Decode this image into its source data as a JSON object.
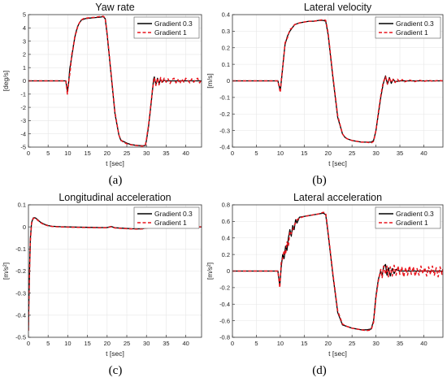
{
  "colors": {
    "series1": "#000000",
    "series2": "#e8141c",
    "grid": "#e6e6e6",
    "axis": "#333333"
  },
  "chart_data": [
    {
      "type": "line",
      "panel_label": "(a)",
      "title": "Yaw rate",
      "xlabel": "t [sec]",
      "ylabel": "[deg/s]",
      "xlim": [
        0,
        44
      ],
      "ylim": [
        -5,
        5
      ],
      "xticks": [
        0,
        5,
        10,
        15,
        20,
        25,
        30,
        35,
        40
      ],
      "yticks": [
        -5,
        -4,
        -3,
        -2,
        -1,
        0,
        1,
        2,
        3,
        4,
        5
      ],
      "grid": true,
      "legend_position": "top-right",
      "series": [
        {
          "name": "Gradient 0.3",
          "style": "solid",
          "x": [
            0,
            9.5,
            9.9,
            10.2,
            10.5,
            11,
            11.5,
            12,
            12.5,
            13,
            13.5,
            14,
            14.5,
            15,
            16,
            17,
            18,
            19,
            19.5,
            20,
            21,
            22,
            23,
            23.5,
            24,
            25,
            26,
            27,
            28,
            29,
            29.7,
            30,
            30.5,
            31,
            31.5,
            31.8,
            32,
            32.4,
            32.8,
            33.2,
            33.6,
            34,
            34.5,
            35,
            36,
            37,
            38,
            39,
            40,
            41,
            42,
            43,
            44
          ],
          "y": [
            0,
            0,
            -0.8,
            -0.2,
            0.9,
            1.8,
            2.8,
            3.6,
            4.1,
            4.4,
            4.6,
            4.65,
            4.7,
            4.72,
            4.75,
            4.78,
            4.8,
            4.85,
            4.7,
            3.5,
            0.5,
            -2.5,
            -4.1,
            -4.5,
            -4.55,
            -4.7,
            -4.8,
            -4.85,
            -4.88,
            -4.9,
            -4.88,
            -4.5,
            -3.5,
            -2.2,
            -0.8,
            0.1,
            0.3,
            -0.3,
            0.2,
            -0.2,
            0.1,
            -0.1,
            0.05,
            0,
            0,
            0,
            0,
            0,
            0,
            0,
            0,
            0,
            0
          ]
        },
        {
          "name": "Gradient 1",
          "style": "dashed",
          "x": [
            0,
            9.5,
            9.9,
            10.3,
            10.6,
            11,
            11.4,
            11.8,
            12.2,
            12.6,
            13,
            13.5,
            14,
            14.5,
            15,
            16,
            17,
            18,
            19,
            19.5,
            20,
            21,
            22,
            23,
            23.5,
            24,
            25,
            26,
            27,
            28,
            29,
            29.7,
            30,
            30.5,
            31,
            31.5,
            32,
            32.4,
            32.8,
            33.2,
            33.6,
            34,
            34.5,
            35,
            35.5,
            36,
            36.5,
            37,
            37.5,
            38,
            38.5,
            39,
            39.5,
            40,
            40.5,
            41,
            41.5,
            42,
            42.5,
            43,
            43.5,
            44
          ],
          "y": [
            0,
            0,
            -1.0,
            0.1,
            0.7,
            2.0,
            2.5,
            3.4,
            3.7,
            4.2,
            4.4,
            4.6,
            4.7,
            4.72,
            4.75,
            4.78,
            4.8,
            4.85,
            4.88,
            4.75,
            3.6,
            0.6,
            -2.4,
            -4.1,
            -4.45,
            -4.6,
            -4.75,
            -4.82,
            -4.86,
            -4.9,
            -4.92,
            -4.88,
            -4.4,
            -3.4,
            -2.1,
            -0.7,
            0.25,
            -0.35,
            0.2,
            -0.3,
            0.25,
            -0.15,
            0.2,
            -0.1,
            0.15,
            -0.2,
            0.1,
            0.2,
            -0.15,
            0.1,
            -0.2,
            0.15,
            -0.1,
            0.2,
            0.05,
            -0.15,
            0.15,
            -0.1,
            0.1,
            0.2,
            -0.15,
            0.1
          ]
        }
      ]
    },
    {
      "type": "line",
      "panel_label": "(b)",
      "title": "Lateral velocity",
      "xlabel": "t [sec]",
      "ylabel": "[m/s]",
      "xlim": [
        0,
        44
      ],
      "ylim": [
        -0.4,
        0.4
      ],
      "xticks": [
        0,
        5,
        10,
        15,
        20,
        25,
        30,
        35,
        40
      ],
      "yticks": [
        -0.4,
        -0.3,
        -0.2,
        -0.1,
        0,
        0.1,
        0.2,
        0.3,
        0.4
      ],
      "grid": true,
      "legend_position": "top-right",
      "series": [
        {
          "name": "Gradient 0.3",
          "style": "solid",
          "x": [
            0,
            9.5,
            10,
            10.3,
            10.7,
            11,
            11.5,
            12,
            12.5,
            13,
            14,
            15,
            16,
            17,
            18,
            19,
            19.5,
            20,
            21,
            22,
            23,
            23.5,
            24,
            25,
            26,
            27,
            28,
            29,
            29.5,
            30,
            30.5,
            31,
            31.5,
            32,
            32.4,
            32.8,
            33.2,
            33.6,
            34,
            35,
            36,
            38,
            40,
            42,
            44
          ],
          "y": [
            0,
            0,
            -0.06,
            0.02,
            0.14,
            0.22,
            0.27,
            0.3,
            0.32,
            0.34,
            0.35,
            0.355,
            0.36,
            0.36,
            0.365,
            0.365,
            0.36,
            0.28,
            0.02,
            -0.22,
            -0.32,
            -0.34,
            -0.35,
            -0.36,
            -0.365,
            -0.37,
            -0.37,
            -0.37,
            -0.36,
            -0.3,
            -0.2,
            -0.1,
            -0.02,
            0.03,
            -0.02,
            0.02,
            -0.015,
            0.01,
            -0.005,
            0,
            0,
            0,
            0,
            0,
            0
          ]
        },
        {
          "name": "Gradient 1",
          "style": "dashed",
          "x": [
            0,
            9.5,
            10,
            10.3,
            10.7,
            11,
            11.5,
            12,
            12.5,
            13,
            14,
            15,
            16,
            17,
            18,
            19,
            19.5,
            20,
            21,
            22,
            23,
            23.5,
            24,
            25,
            26,
            27,
            28,
            29,
            29.5,
            30,
            30.5,
            31,
            31.5,
            32,
            32.4,
            32.8,
            33.2,
            33.6,
            34,
            34.5,
            35,
            35.5,
            36,
            37,
            38,
            39,
            40,
            41,
            42,
            43,
            44
          ],
          "y": [
            0,
            0,
            -0.07,
            0.03,
            0.13,
            0.23,
            0.26,
            0.31,
            0.32,
            0.34,
            0.35,
            0.355,
            0.36,
            0.36,
            0.365,
            0.37,
            0.365,
            0.29,
            0.03,
            -0.21,
            -0.32,
            -0.34,
            -0.35,
            -0.36,
            -0.365,
            -0.37,
            -0.37,
            -0.375,
            -0.365,
            -0.3,
            -0.19,
            -0.09,
            -0.01,
            0.025,
            -0.02,
            0.02,
            -0.01,
            0.01,
            -0.01,
            0.01,
            -0.008,
            0.008,
            -0.006,
            0.006,
            -0.006,
            0.005,
            -0.004,
            0.004,
            -0.003,
            0.003,
            0
          ]
        }
      ]
    },
    {
      "type": "line",
      "panel_label": "(c)",
      "title": "Longitudinal acceleration",
      "xlabel": "t [sec]",
      "ylabel": "[m/s²]",
      "xlim": [
        0,
        44
      ],
      "ylim": [
        -0.5,
        0.1
      ],
      "xticks": [
        0,
        5,
        10,
        15,
        20,
        25,
        30,
        35,
        40
      ],
      "yticks": [
        -0.5,
        -0.4,
        -0.3,
        -0.2,
        -0.1,
        0,
        0.1
      ],
      "grid": true,
      "legend_position": "top-right",
      "series": [
        {
          "name": "Gradient 0.3",
          "style": "solid",
          "x": [
            0,
            0.1,
            0.3,
            0.5,
            0.8,
            1.2,
            1.6,
            2,
            2.5,
            3,
            4,
            5,
            6,
            8,
            10,
            12,
            15,
            18,
            20,
            21,
            22,
            24,
            26,
            28,
            29,
            30,
            32,
            35,
            40,
            44
          ],
          "y": [
            -0.47,
            -0.35,
            -0.18,
            -0.05,
            0.02,
            0.04,
            0.042,
            0.038,
            0.03,
            0.022,
            0.012,
            0.006,
            0.003,
            0.001,
            0,
            -0.001,
            -0.002,
            -0.003,
            -0.003,
            0.002,
            -0.004,
            -0.006,
            -0.008,
            -0.009,
            -0.008,
            -0.004,
            -0.002,
            -0.001,
            0,
            0
          ]
        },
        {
          "name": "Gradient 1",
          "style": "dashed",
          "x": [
            0,
            0.1,
            0.3,
            0.5,
            0.8,
            1.2,
            1.6,
            2,
            2.5,
            3,
            4,
            5,
            6,
            8,
            10,
            12,
            15,
            18,
            20,
            21,
            22,
            24,
            26,
            28,
            29,
            30,
            32,
            35,
            40,
            44
          ],
          "y": [
            -0.47,
            -0.36,
            -0.19,
            -0.06,
            0.015,
            0.038,
            0.04,
            0.036,
            0.028,
            0.02,
            0.01,
            0.005,
            0.002,
            0,
            -0.001,
            -0.002,
            -0.003,
            -0.004,
            -0.004,
            0.001,
            -0.005,
            -0.007,
            -0.009,
            -0.01,
            -0.009,
            -0.005,
            -0.002,
            -0.001,
            0,
            0
          ]
        }
      ]
    },
    {
      "type": "line",
      "panel_label": "(d)",
      "title": "Lateral acceleration",
      "xlabel": "t [sec]",
      "ylabel": "[m/s²]",
      "xlim": [
        0,
        44
      ],
      "ylim": [
        -0.8,
        0.8
      ],
      "xticks": [
        0,
        5,
        10,
        15,
        20,
        25,
        30,
        35,
        40
      ],
      "yticks": [
        -0.8,
        -0.6,
        -0.4,
        -0.2,
        0,
        0.2,
        0.4,
        0.6,
        0.8
      ],
      "grid": true,
      "legend_position": "top-right",
      "series": [
        {
          "name": "Gradient 0.3",
          "style": "solid",
          "x": [
            0,
            9.5,
            9.9,
            10.2,
            10.5,
            10.8,
            11.1,
            11.4,
            11.7,
            12,
            12.3,
            12.6,
            12.9,
            13.2,
            13.5,
            14,
            15,
            16,
            17,
            18,
            19,
            19.5,
            20,
            21,
            22,
            23,
            24,
            25,
            26,
            27,
            28,
            29,
            29.5,
            30,
            30.5,
            31,
            31.3,
            31.6,
            32,
            32.3,
            32.6,
            33,
            33.4,
            33.8,
            34.2,
            35,
            36,
            38,
            40,
            42,
            44
          ],
          "y": [
            0,
            0,
            -0.18,
            0.05,
            0.2,
            0.15,
            0.3,
            0.25,
            0.4,
            0.5,
            0.42,
            0.55,
            0.5,
            0.62,
            0.58,
            0.65,
            0.66,
            0.67,
            0.68,
            0.69,
            0.7,
            0.68,
            0.45,
            -0.05,
            -0.5,
            -0.65,
            -0.67,
            -0.69,
            -0.7,
            -0.71,
            -0.71,
            -0.7,
            -0.6,
            -0.3,
            -0.1,
            0.0,
            -0.06,
            0.05,
            0.08,
            -0.05,
            0.04,
            -0.06,
            0.03,
            -0.03,
            0.02,
            0,
            0,
            0,
            0,
            0,
            0
          ]
        },
        {
          "name": "Gradient 1",
          "style": "dashed",
          "x": [
            0,
            9.5,
            9.9,
            10.2,
            10.5,
            10.8,
            11.1,
            11.4,
            11.7,
            12,
            12.3,
            12.6,
            12.9,
            13.2,
            13.5,
            14,
            15,
            16,
            17,
            18,
            19,
            19.5,
            20,
            21,
            22,
            23,
            24,
            25,
            26,
            27,
            28,
            29,
            29.5,
            30,
            30.5,
            31,
            31.3,
            31.6,
            32,
            32.3,
            32.6,
            33,
            33.4,
            33.8,
            34.2,
            34.6,
            35,
            35.4,
            35.8,
            36.2,
            36.6,
            37,
            37.4,
            37.8,
            38.2,
            38.6,
            39,
            39.4,
            39.8,
            40.2,
            40.6,
            41,
            41.4,
            41.8,
            42.2,
            42.6,
            43,
            43.4,
            43.8,
            44
          ],
          "y": [
            0,
            0,
            -0.2,
            0.1,
            0.15,
            0.25,
            0.2,
            0.35,
            0.3,
            0.48,
            0.45,
            0.5,
            0.55,
            0.58,
            0.62,
            0.64,
            0.66,
            0.67,
            0.68,
            0.69,
            0.71,
            0.7,
            0.47,
            -0.03,
            -0.48,
            -0.64,
            -0.67,
            -0.69,
            -0.7,
            -0.71,
            -0.72,
            -0.71,
            -0.62,
            -0.32,
            -0.12,
            0.02,
            -0.08,
            0.06,
            -0.04,
            0.06,
            -0.07,
            0.05,
            -0.06,
            0.07,
            -0.05,
            0.06,
            -0.04,
            0.05,
            -0.07,
            0.04,
            -0.05,
            0.06,
            -0.04,
            0.05,
            -0.06,
            0.03,
            -0.05,
            0.06,
            -0.03,
            0.04,
            -0.06,
            0.05,
            -0.04,
            0.06,
            -0.05,
            0.04,
            -0.07,
            0.05,
            -0.04,
            0.03
          ]
        }
      ]
    }
  ]
}
